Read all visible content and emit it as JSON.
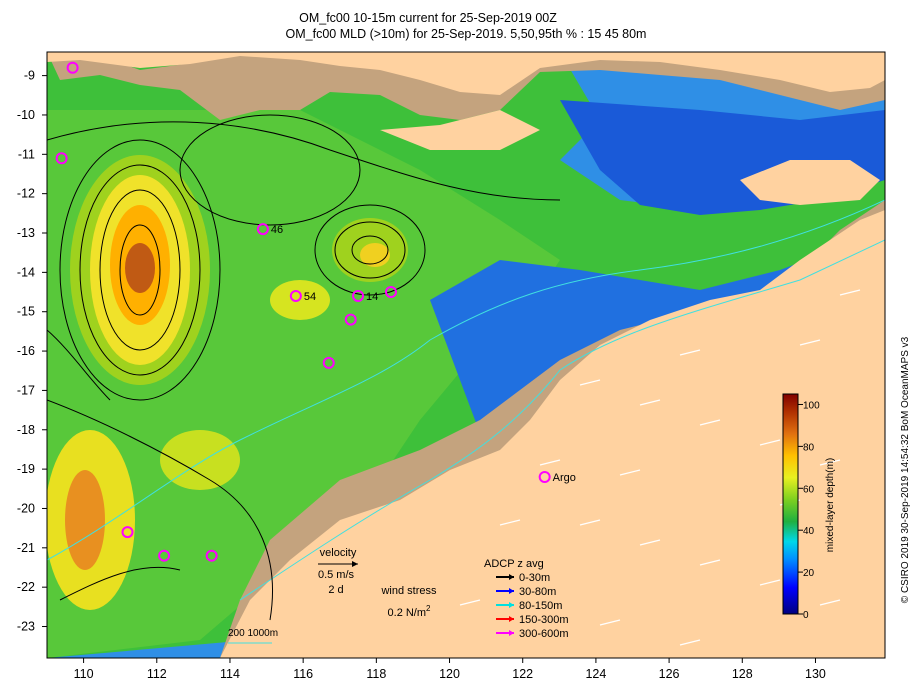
{
  "title": {
    "line1": "OM_fc00 10-15m current for 25-Sep-2019 00Z",
    "line2": "OM_fc00 MLD (>10m) for 25-Sep-2019. 5,50,95th % : 15  45  80m"
  },
  "axes": {
    "x_ticks": [
      "110",
      "112",
      "114",
      "116",
      "118",
      "120",
      "122",
      "124",
      "126",
      "128",
      "130"
    ],
    "y_ticks": [
      "-9",
      "-10",
      "-11",
      "-12",
      "-13",
      "-14",
      "-15",
      "-16",
      "-17",
      "-18",
      "-19",
      "-20",
      "-21",
      "-22",
      "-23"
    ],
    "xlim": [
      109,
      131.9
    ],
    "ylim": [
      -23.8,
      -8.4
    ]
  },
  "colorbar": {
    "label": "mixed-layer depth(m)",
    "ticks": [
      "0",
      "20",
      "40",
      "60",
      "80",
      "100"
    ],
    "range": [
      0,
      105
    ]
  },
  "legend": {
    "velocity_label": "velocity",
    "velocity_scale": "0.5 m/s",
    "velocity_time": "2 d",
    "wind_label": "wind stress",
    "wind_scale": "0.2 N/m",
    "wind_scale_sup": "2",
    "adcp_title": "ADCP z avg",
    "adcp_items": [
      {
        "label": "0-30m",
        "color": "#000000"
      },
      {
        "label": "30-80m",
        "color": "#0000ff"
      },
      {
        "label": "80-150m",
        "color": "#00e0e0"
      },
      {
        "label": "150-300m",
        "color": "#ff0000"
      },
      {
        "label": "300-600m",
        "color": "#ff00ff"
      }
    ],
    "isobaths": "200  1000m"
  },
  "credit": "© CSIRO 2019   30-Sep-2019 14:54:32 BoM OceanMAPS v3",
  "markers": [
    {
      "lon": 109.7,
      "lat": -8.8,
      "label": ""
    },
    {
      "lon": 109.4,
      "lat": -11.1,
      "label": ""
    },
    {
      "lon": 114.9,
      "lat": -12.9,
      "label": "46"
    },
    {
      "lon": 115.8,
      "lat": -14.6,
      "label": "54"
    },
    {
      "lon": 117.5,
      "lat": -14.6,
      "label": "14"
    },
    {
      "lon": 117.3,
      "lat": -15.2,
      "label": ""
    },
    {
      "lon": 118.4,
      "lat": -14.5,
      "label": ""
    },
    {
      "lon": 116.7,
      "lat": -16.3,
      "label": ""
    },
    {
      "lon": 122.6,
      "lat": -19.2,
      "label": "Argo"
    },
    {
      "lon": 111.2,
      "lat": -20.6,
      "label": ""
    },
    {
      "lon": 112.2,
      "lat": -21.2,
      "label": ""
    },
    {
      "lon": 113.5,
      "lat": -21.2,
      "label": ""
    }
  ],
  "colors": {
    "land": "#ffd2a0",
    "shelf": "#c4a37e",
    "marker": "#ff00ff"
  }
}
